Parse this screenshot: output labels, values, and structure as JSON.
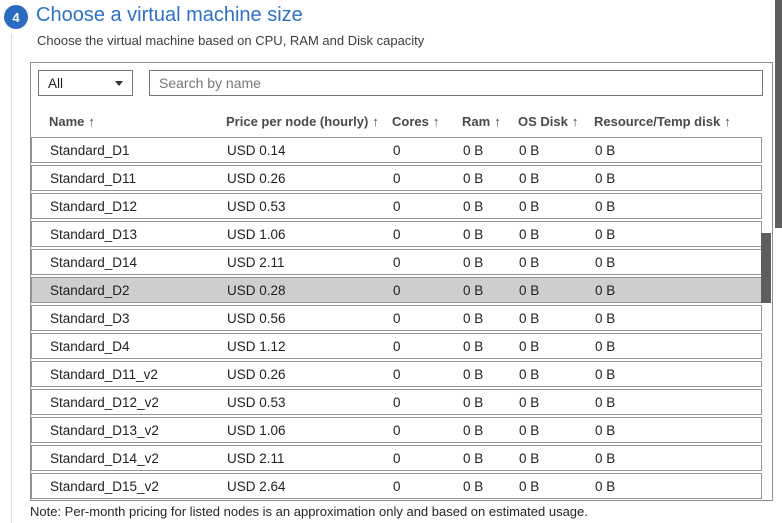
{
  "step": {
    "number": "4",
    "title": "Choose a virtual machine size",
    "subtitle": "Choose the virtual machine based on CPU, RAM and Disk capacity"
  },
  "filter": {
    "dropdown_value": "All",
    "search_placeholder": "Search by name",
    "search_value": ""
  },
  "table": {
    "sort_icon": "↑",
    "columns": [
      "Name",
      "Price per node (hourly)",
      "Cores",
      "Ram",
      "OS Disk",
      "Resource/Temp disk"
    ],
    "rows": [
      {
        "name": "Standard_D1",
        "price": "USD 0.14",
        "cores": "0",
        "ram": "0 B",
        "os_disk": "0 B",
        "rt_disk": "0 B",
        "selected": false
      },
      {
        "name": "Standard_D11",
        "price": "USD 0.26",
        "cores": "0",
        "ram": "0 B",
        "os_disk": "0 B",
        "rt_disk": "0 B",
        "selected": false
      },
      {
        "name": "Standard_D12",
        "price": "USD 0.53",
        "cores": "0",
        "ram": "0 B",
        "os_disk": "0 B",
        "rt_disk": "0 B",
        "selected": false
      },
      {
        "name": "Standard_D13",
        "price": "USD 1.06",
        "cores": "0",
        "ram": "0 B",
        "os_disk": "0 B",
        "rt_disk": "0 B",
        "selected": false
      },
      {
        "name": "Standard_D14",
        "price": "USD 2.11",
        "cores": "0",
        "ram": "0 B",
        "os_disk": "0 B",
        "rt_disk": "0 B",
        "selected": false
      },
      {
        "name": "Standard_D2",
        "price": "USD 0.28",
        "cores": "0",
        "ram": "0 B",
        "os_disk": "0 B",
        "rt_disk": "0 B",
        "selected": true
      },
      {
        "name": "Standard_D3",
        "price": "USD 0.56",
        "cores": "0",
        "ram": "0 B",
        "os_disk": "0 B",
        "rt_disk": "0 B",
        "selected": false
      },
      {
        "name": "Standard_D4",
        "price": "USD 1.12",
        "cores": "0",
        "ram": "0 B",
        "os_disk": "0 B",
        "rt_disk": "0 B",
        "selected": false
      },
      {
        "name": "Standard_D11_v2",
        "price": "USD 0.26",
        "cores": "0",
        "ram": "0 B",
        "os_disk": "0 B",
        "rt_disk": "0 B",
        "selected": false
      },
      {
        "name": "Standard_D12_v2",
        "price": "USD 0.53",
        "cores": "0",
        "ram": "0 B",
        "os_disk": "0 B",
        "rt_disk": "0 B",
        "selected": false
      },
      {
        "name": "Standard_D13_v2",
        "price": "USD 1.06",
        "cores": "0",
        "ram": "0 B",
        "os_disk": "0 B",
        "rt_disk": "0 B",
        "selected": false
      },
      {
        "name": "Standard_D14_v2",
        "price": "USD 2.11",
        "cores": "0",
        "ram": "0 B",
        "os_disk": "0 B",
        "rt_disk": "0 B",
        "selected": false
      },
      {
        "name": "Standard_D15_v2",
        "price": "USD 2.64",
        "cores": "0",
        "ram": "0 B",
        "os_disk": "0 B",
        "rt_disk": "0 B",
        "selected": false
      }
    ]
  },
  "note": "Note: Per-month pricing for listed nodes is an approximation only and based on estimated usage.",
  "colors": {
    "accent_blue": "#2e72c8",
    "step_circle_blue": "#2a6bc2",
    "selected_row_bg": "#cecece",
    "panel_border": "#8f8f8f",
    "row_border": "#969696",
    "scrollbar_thumb": "#5d5d5d"
  }
}
